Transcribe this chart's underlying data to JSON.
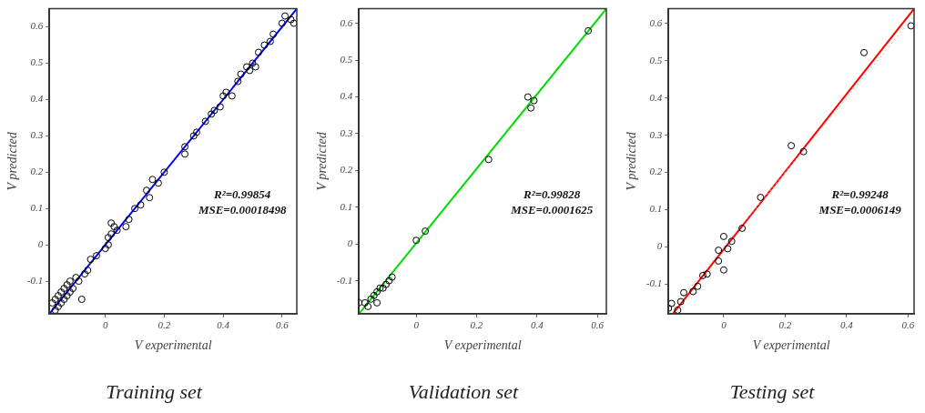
{
  "chart_data": [
    {
      "type": "scatter",
      "title": "Training set",
      "xlabel": "V experimental",
      "ylabel": "V predicted",
      "xlim": [
        -0.19,
        0.65
      ],
      "ylim": [
        -0.19,
        0.65
      ],
      "xticks": [
        0,
        0.2,
        0.4,
        0.6
      ],
      "yticks": [
        -0.1,
        0,
        0.1,
        0.2,
        0.3,
        0.4,
        0.5,
        0.6
      ],
      "annotations": [
        "R²=0.99854",
        "MSE=0.00018498"
      ],
      "series": [
        {
          "marker": "circle",
          "color": "#000000",
          "x": [
            -0.18,
            -0.17,
            -0.17,
            -0.16,
            -0.16,
            -0.15,
            -0.15,
            -0.14,
            -0.14,
            -0.13,
            -0.13,
            -0.12,
            -0.12,
            -0.11,
            -0.1,
            -0.09,
            -0.08,
            -0.07,
            -0.06,
            -0.05,
            -0.03,
            0.0,
            0.01,
            0.01,
            0.02,
            0.02,
            0.03,
            0.04,
            0.07,
            0.08,
            0.1,
            0.12,
            0.14,
            0.15,
            0.16,
            0.18,
            0.2,
            0.27,
            0.27,
            0.3,
            0.31,
            0.34,
            0.36,
            0.37,
            0.39,
            0.4,
            0.41,
            0.43,
            0.45,
            0.46,
            0.48,
            0.49,
            0.5,
            0.51,
            0.52,
            0.54,
            0.56,
            0.57,
            0.6,
            0.61,
            0.63,
            0.64
          ],
          "values": [
            -0.16,
            -0.18,
            -0.15,
            -0.17,
            -0.14,
            -0.16,
            -0.13,
            -0.15,
            -0.12,
            -0.14,
            -0.11,
            -0.13,
            -0.1,
            -0.12,
            -0.09,
            -0.1,
            -0.15,
            -0.08,
            -0.07,
            -0.04,
            -0.03,
            -0.01,
            0.0,
            0.02,
            0.03,
            0.06,
            0.05,
            0.04,
            0.05,
            0.07,
            0.1,
            0.11,
            0.15,
            0.13,
            0.18,
            0.17,
            0.2,
            0.25,
            0.27,
            0.3,
            0.31,
            0.34,
            0.36,
            0.37,
            0.38,
            0.41,
            0.42,
            0.41,
            0.45,
            0.47,
            0.49,
            0.48,
            0.5,
            0.49,
            0.53,
            0.55,
            0.56,
            0.58,
            0.61,
            0.63,
            0.62,
            0.61
          ]
        },
        {
          "type": "line",
          "color": "#0000ff",
          "x": [
            -0.19,
            0.65
          ],
          "values": [
            -0.19,
            0.65
          ]
        }
      ]
    },
    {
      "type": "scatter",
      "title": "Validation set",
      "xlabel": "V experimental",
      "ylabel": "V predicted",
      "xlim": [
        -0.19,
        0.63
      ],
      "ylim": [
        -0.19,
        0.64
      ],
      "xticks": [
        0,
        0.2,
        0.4,
        0.6
      ],
      "yticks": [
        -0.1,
        0,
        0.1,
        0.2,
        0.3,
        0.4,
        0.5,
        0.6
      ],
      "annotations": [
        "R²=0.99828",
        "MSE=0.0001625"
      ],
      "series": [
        {
          "marker": "circle",
          "color": "#000000",
          "x": [
            -0.19,
            -0.17,
            -0.16,
            -0.15,
            -0.14,
            -0.13,
            -0.13,
            -0.12,
            -0.11,
            -0.1,
            -0.09,
            -0.08,
            0.0,
            0.03,
            0.24,
            0.37,
            0.38,
            0.39,
            0.57
          ],
          "values": [
            -0.16,
            -0.16,
            -0.17,
            -0.15,
            -0.14,
            -0.16,
            -0.13,
            -0.12,
            -0.12,
            -0.11,
            -0.1,
            -0.09,
            0.01,
            0.035,
            0.23,
            0.4,
            0.37,
            0.39,
            0.58
          ]
        },
        {
          "type": "line",
          "color": "#00dd00",
          "x": [
            -0.19,
            0.63
          ],
          "values": [
            -0.19,
            0.64
          ]
        }
      ]
    },
    {
      "type": "scatter",
      "title": "Testing set",
      "xlabel": "V experimental",
      "ylabel": "V predicted",
      "xlim": [
        -0.18,
        0.62
      ],
      "ylim": [
        -0.18,
        0.64
      ],
      "xticks": [
        0,
        0.2,
        0.4,
        0.6
      ],
      "yticks": [
        -0.1,
        0,
        0.1,
        0.2,
        0.3,
        0.4,
        0.5,
        0.6
      ],
      "annotations": [
        "R²=0.99248",
        "MSE=0.0006149"
      ],
      "series": [
        {
          "marker": "circle",
          "color": "#000000",
          "x": [
            0.61,
            0.457,
            0.22,
            0.26,
            0.12,
            0.06,
            0.0,
            0.026,
            0.013,
            -0.017,
            -0.017,
            0.0,
            -0.054,
            -0.068,
            -0.085,
            -0.1,
            -0.13,
            -0.14,
            -0.17,
            -0.15,
            -0.18
          ],
          "values": [
            0.594,
            0.522,
            0.272,
            0.256,
            0.133,
            0.05,
            0.028,
            0.015,
            -0.005,
            -0.009,
            -0.038,
            -0.062,
            -0.073,
            -0.077,
            -0.106,
            -0.12,
            -0.123,
            -0.147,
            -0.152,
            -0.17,
            -0.165
          ]
        },
        {
          "type": "line",
          "color": "#bbbbbb",
          "line_style": "dotted",
          "x": [
            -0.18,
            0.62
          ],
          "values": [
            -0.18,
            0.62
          ]
        },
        {
          "type": "line",
          "color": "#ff0000",
          "x": [
            -0.166,
            0.62
          ],
          "values": [
            -0.18,
            0.64
          ]
        }
      ]
    }
  ]
}
